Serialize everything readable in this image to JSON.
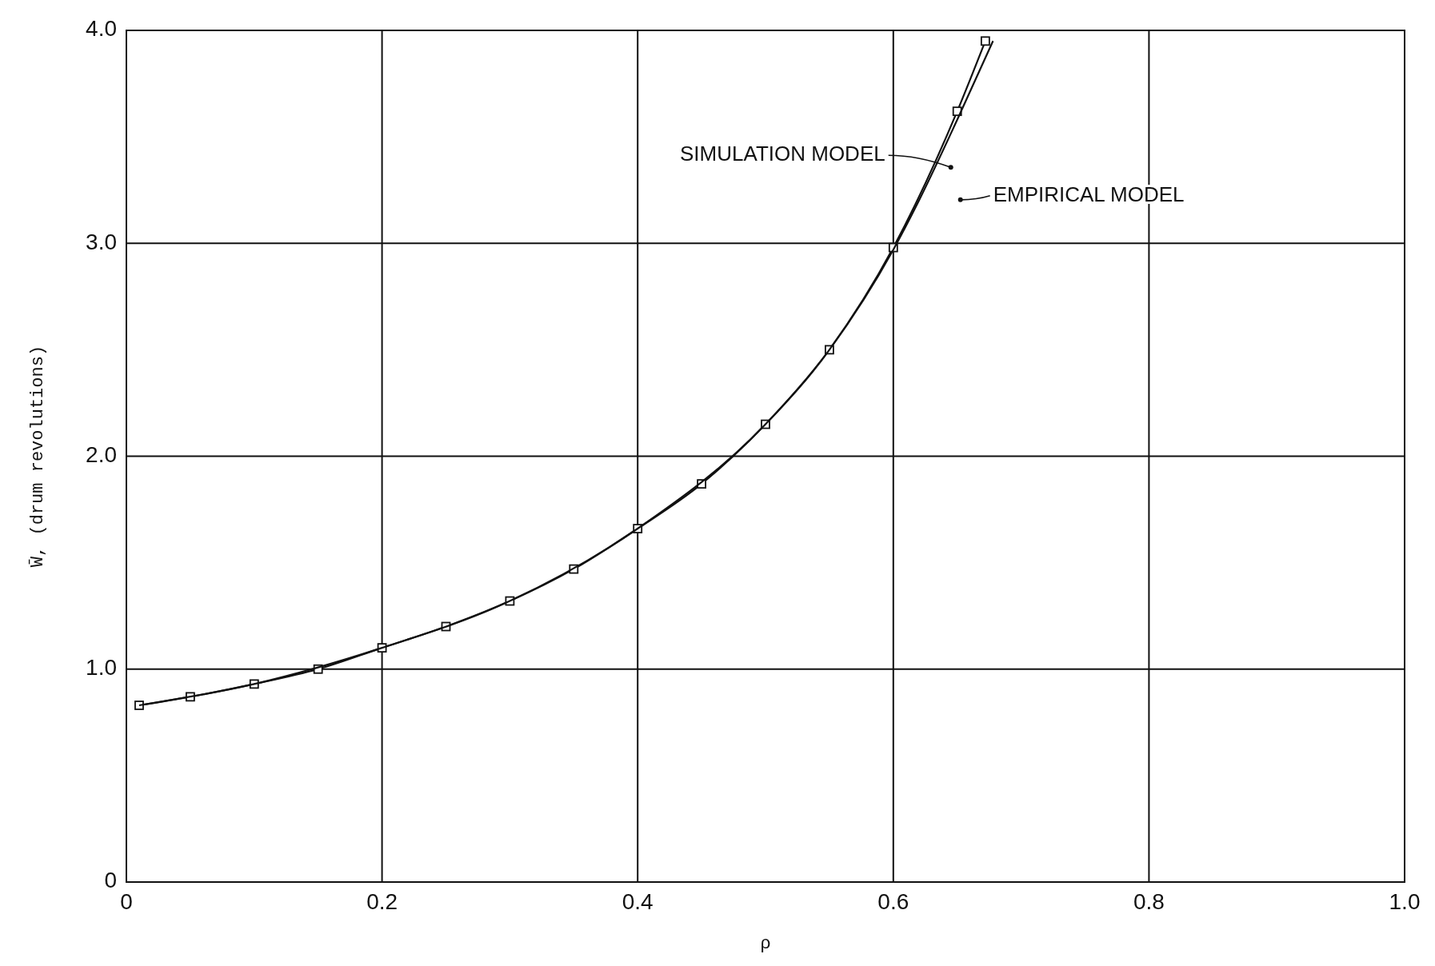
{
  "chart_data": {
    "type": "line",
    "xlabel": "ρ",
    "ylabel": "W̄, (drum revolutions)",
    "xlim": [
      0,
      1.0
    ],
    "ylim": [
      0,
      4.0
    ],
    "xticks": [
      0,
      0.2,
      0.4,
      0.6,
      0.8,
      {
        "value": 1,
        "label": "1.0"
      }
    ],
    "yticks": [
      0,
      {
        "value": 1,
        "label": "1.0"
      },
      {
        "value": 2,
        "label": "2.0"
      },
      {
        "value": 3,
        "label": "3.0"
      },
      {
        "value": 4,
        "label": "4.0"
      }
    ],
    "grid": true,
    "line_style": "solid",
    "series": [
      {
        "name": "SIMULATION MODEL",
        "color": "#111111",
        "marker": "square",
        "x": [
          0.01,
          0.05,
          0.1,
          0.15,
          0.2,
          0.25,
          0.3,
          0.35,
          0.4,
          0.45,
          0.5,
          0.55,
          0.6,
          0.65,
          0.672
        ],
        "values": [
          0.83,
          0.87,
          0.93,
          1.0,
          1.1,
          1.2,
          1.32,
          1.47,
          1.66,
          1.87,
          2.15,
          2.5,
          2.98,
          3.62,
          3.95
        ]
      },
      {
        "name": "EMPIRICAL MODEL",
        "color": "#111111",
        "marker": "none",
        "x": [
          0.01,
          0.1,
          0.2,
          0.3,
          0.4,
          0.5,
          0.55,
          0.6,
          0.62,
          0.65,
          0.678
        ],
        "values": [
          0.83,
          0.93,
          1.1,
          1.32,
          1.66,
          2.15,
          2.5,
          2.97,
          3.2,
          3.58,
          3.95
        ]
      }
    ]
  }
}
